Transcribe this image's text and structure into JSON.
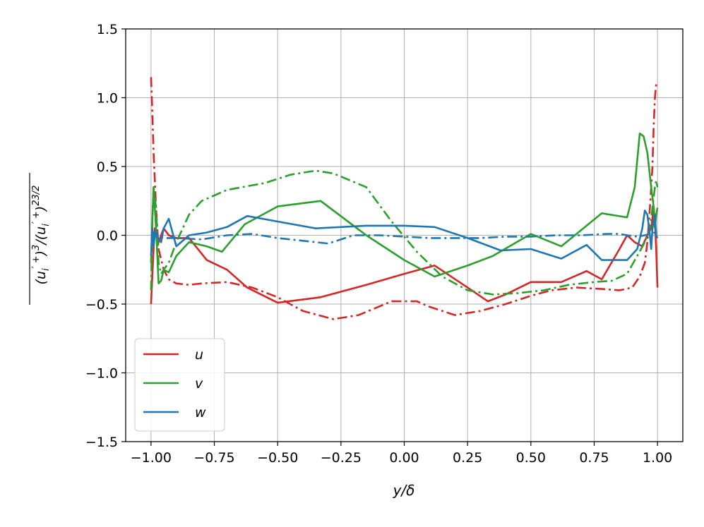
{
  "chart_data": {
    "type": "line",
    "title": "",
    "xlabel": "y/δ",
    "ylabel": "(u_i'^+)^3/(u_i'^+)^2^{3/2}",
    "xlim": [
      -1.1,
      1.1
    ],
    "ylim": [
      -1.5,
      1.5
    ],
    "x_ticks": [
      -1.0,
      -0.75,
      -0.5,
      -0.25,
      0.0,
      0.25,
      0.5,
      0.75,
      1.0
    ],
    "x_tick_labels": [
      "−1.00",
      "−0.75",
      "−0.50",
      "−0.25",
      "0.00",
      "0.25",
      "0.50",
      "0.75",
      "1.00"
    ],
    "y_ticks": [
      -1.5,
      -1.0,
      -0.5,
      0.0,
      0.5,
      1.0,
      1.5
    ],
    "y_tick_labels": [
      "−1.5",
      "−1.0",
      "−0.5",
      "0.0",
      "0.5",
      "1.0",
      "1.5"
    ],
    "grid": true,
    "legend_position": "lower-left",
    "legend": [
      {
        "label": "u",
        "color": "#d62728"
      },
      {
        "label": "v",
        "color": "#2ca02c"
      },
      {
        "label": "w",
        "color": "#1f77b4"
      }
    ],
    "series": [
      {
        "name": "u",
        "color": "#d62728",
        "style": "solid",
        "x": [
          -1.0,
          -0.995,
          -0.99,
          -0.985,
          -0.98,
          -0.97,
          -0.96,
          -0.95,
          -0.93,
          -0.9,
          -0.85,
          -0.78,
          -0.7,
          -0.62,
          -0.5,
          -0.33,
          -0.15,
          0.0,
          0.12,
          0.25,
          0.33,
          0.4,
          0.5,
          0.62,
          0.72,
          0.78,
          0.85,
          0.88,
          0.91,
          0.94,
          0.96,
          0.975,
          0.985,
          0.99,
          0.995,
          1.0
        ],
        "y": [
          -0.5,
          -0.3,
          -0.1,
          0.05,
          0.0,
          -0.05,
          0.0,
          0.05,
          0.0,
          -0.02,
          -0.02,
          -0.18,
          -0.25,
          -0.38,
          -0.49,
          -0.45,
          -0.36,
          -0.28,
          -0.22,
          -0.38,
          -0.48,
          -0.43,
          -0.34,
          -0.34,
          -0.26,
          -0.32,
          -0.1,
          0.0,
          -0.05,
          -0.08,
          0.0,
          0.05,
          0.2,
          0.1,
          -0.1,
          -0.38
        ]
      },
      {
        "name": "u (dash-dot)",
        "color": "#d62728",
        "style": "dashdot",
        "x": [
          -1.0,
          -0.995,
          -0.99,
          -0.98,
          -0.97,
          -0.95,
          -0.93,
          -0.9,
          -0.85,
          -0.8,
          -0.7,
          -0.6,
          -0.5,
          -0.4,
          -0.28,
          -0.18,
          -0.05,
          0.05,
          0.1,
          0.2,
          0.3,
          0.4,
          0.5,
          0.58,
          0.68,
          0.78,
          0.85,
          0.9,
          0.93,
          0.95,
          0.96,
          0.97,
          0.98,
          0.985,
          0.99,
          0.995,
          1.0
        ],
        "y": [
          1.15,
          0.9,
          0.6,
          0.2,
          -0.1,
          -0.25,
          -0.32,
          -0.35,
          -0.36,
          -0.35,
          -0.34,
          -0.38,
          -0.45,
          -0.55,
          -0.61,
          -0.58,
          -0.48,
          -0.48,
          -0.52,
          -0.58,
          -0.55,
          -0.5,
          -0.44,
          -0.4,
          -0.38,
          -0.39,
          -0.4,
          -0.38,
          -0.3,
          -0.2,
          -0.05,
          0.2,
          0.5,
          0.8,
          1.0,
          1.1,
          1.1
        ]
      },
      {
        "name": "v",
        "color": "#2ca02c",
        "style": "solid",
        "x": [
          -1.0,
          -0.995,
          -0.99,
          -0.98,
          -0.97,
          -0.96,
          -0.95,
          -0.93,
          -0.9,
          -0.85,
          -0.78,
          -0.72,
          -0.63,
          -0.5,
          -0.33,
          -0.15,
          0.0,
          0.12,
          0.25,
          0.35,
          0.5,
          0.62,
          0.72,
          0.78,
          0.88,
          0.91,
          0.93,
          0.945,
          0.96,
          0.975,
          0.985,
          0.99,
          0.995,
          1.0
        ],
        "y": [
          -0.2,
          0.1,
          0.35,
          0.05,
          -0.35,
          -0.33,
          -0.25,
          -0.27,
          -0.15,
          -0.05,
          -0.08,
          -0.12,
          0.08,
          0.21,
          0.25,
          0.0,
          -0.18,
          -0.3,
          -0.22,
          -0.15,
          0.01,
          -0.08,
          0.07,
          0.16,
          0.13,
          0.35,
          0.74,
          0.72,
          0.6,
          0.35,
          0.2,
          0.05,
          0.15,
          0.2
        ]
      },
      {
        "name": "v (dash-dot)",
        "color": "#2ca02c",
        "style": "dashdot",
        "x": [
          -1.0,
          -0.995,
          -0.99,
          -0.98,
          -0.97,
          -0.96,
          -0.95,
          -0.93,
          -0.9,
          -0.85,
          -0.8,
          -0.7,
          -0.55,
          -0.45,
          -0.35,
          -0.28,
          -0.15,
          -0.05,
          0.05,
          0.15,
          0.25,
          0.35,
          0.45,
          0.55,
          0.65,
          0.75,
          0.82,
          0.88,
          0.92,
          0.95,
          0.97,
          0.98,
          0.99,
          0.995,
          1.0
        ],
        "y": [
          -0.4,
          0.1,
          0.35,
          0.2,
          -0.2,
          -0.28,
          -0.25,
          -0.2,
          -0.05,
          0.15,
          0.25,
          0.33,
          0.38,
          0.44,
          0.47,
          0.45,
          0.35,
          0.1,
          -0.12,
          -0.3,
          -0.4,
          -0.43,
          -0.42,
          -0.4,
          -0.36,
          -0.34,
          -0.33,
          -0.28,
          -0.15,
          -0.05,
          0.05,
          0.2,
          0.35,
          0.4,
          0.35
        ]
      },
      {
        "name": "w",
        "color": "#1f77b4",
        "style": "solid",
        "x": [
          -1.0,
          -0.995,
          -0.99,
          -0.985,
          -0.98,
          -0.97,
          -0.96,
          -0.95,
          -0.93,
          -0.9,
          -0.85,
          -0.78,
          -0.7,
          -0.62,
          -0.5,
          -0.35,
          -0.15,
          0.0,
          0.12,
          0.25,
          0.38,
          0.5,
          0.62,
          0.72,
          0.78,
          0.88,
          0.92,
          0.94,
          0.95,
          0.96,
          0.97,
          0.975,
          0.98,
          0.99,
          0.995,
          1.0
        ],
        "y": [
          -0.15,
          0.05,
          -0.08,
          0.0,
          0.03,
          -0.03,
          -0.05,
          0.05,
          0.12,
          -0.08,
          0.0,
          0.02,
          0.06,
          0.14,
          0.1,
          0.05,
          0.07,
          0.07,
          0.06,
          -0.02,
          -0.11,
          -0.1,
          -0.17,
          -0.07,
          -0.18,
          -0.18,
          -0.1,
          0.05,
          0.18,
          0.15,
          0.0,
          -0.1,
          0.05,
          0.15,
          0.0,
          -0.02
        ]
      },
      {
        "name": "w (dash-dot)",
        "color": "#1f77b4",
        "style": "dashdot",
        "x": [
          -1.0,
          -0.99,
          -0.98,
          -0.95,
          -0.9,
          -0.8,
          -0.7,
          -0.6,
          -0.5,
          -0.4,
          -0.3,
          -0.2,
          -0.1,
          0.0,
          0.1,
          0.2,
          0.3,
          0.4,
          0.5,
          0.6,
          0.7,
          0.8,
          0.85,
          0.88,
          0.92,
          0.95,
          0.97,
          0.99,
          1.0
        ],
        "y": [
          0.0,
          0.02,
          -0.01,
          -0.02,
          -0.02,
          -0.03,
          0.0,
          0.01,
          -0.02,
          -0.04,
          -0.06,
          0.0,
          0.0,
          -0.01,
          -0.02,
          -0.02,
          -0.02,
          -0.01,
          -0.01,
          0.0,
          0.0,
          0.01,
          0.01,
          0.0,
          -0.01,
          0.0,
          0.01,
          0.02,
          0.0
        ]
      }
    ]
  }
}
